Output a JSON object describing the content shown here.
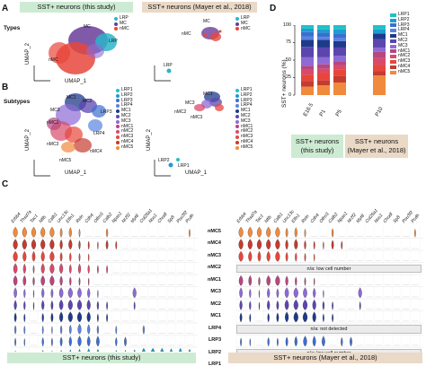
{
  "panels": {
    "A": "A",
    "B": "B",
    "C": "C",
    "D": "D"
  },
  "banners": {
    "this_study": "SST+ neurons (this study)",
    "mayer": "SST+ neurons (Mayer et al., 2018)"
  },
  "rows": {
    "types": "Types",
    "subtypes": "Subtypes"
  },
  "umap": {
    "x": "UMAP_1",
    "y": "UMAP_2"
  },
  "types_legend": [
    {
      "label": "LRP",
      "color": "#2bb5c9"
    },
    {
      "label": "MC",
      "color": "#6a3d9a"
    },
    {
      "label": "nMC",
      "color": "#e8463b"
    }
  ],
  "subtypes_legend": [
    {
      "label": "LRP1",
      "color": "#1fc1c9"
    },
    {
      "label": "LRP2",
      "color": "#1f9bd1"
    },
    {
      "label": "LRP3",
      "color": "#3a6fd0"
    },
    {
      "label": "LRP4",
      "color": "#5a83e0"
    },
    {
      "label": "MC1",
      "color": "#1f3a8a"
    },
    {
      "label": "MC2",
      "color": "#5b46b0"
    },
    {
      "label": "MC3",
      "color": "#8d6ad6"
    },
    {
      "label": "nMC1",
      "color": "#b8467f"
    },
    {
      "label": "nMC2",
      "color": "#d94a6a"
    },
    {
      "label": "nMC3",
      "color": "#e8463b"
    },
    {
      "label": "nMC4",
      "color": "#c43c2f"
    },
    {
      "label": "nMC5",
      "color": "#f08a3c"
    }
  ],
  "cluster_labels_A_left": [
    "MC",
    "LRP",
    "nMC"
  ],
  "cluster_labels_A_right": [
    "MC",
    "nMC",
    "LRP"
  ],
  "cluster_labels_B_left": [
    "MC1",
    "MC2",
    "MC3",
    "LRP1",
    "LRP2",
    "LRP3",
    "LRP4",
    "nMC1",
    "nMC2",
    "nMC3",
    "nMC4",
    "nMC5"
  ],
  "cluster_labels_B_right": [
    "MC1",
    "MC2",
    "MC3",
    "nMC1",
    "nMC2",
    "nMC3",
    "nMC4",
    "nMC5",
    "LRP1",
    "LRP2"
  ],
  "violin": {
    "genes_left": [
      "Erbb4",
      "Thsd7a",
      "Tac1",
      "Nfib",
      "Calb1",
      "Unc13c",
      "Elfn1",
      "Reln",
      "Cdh4",
      "Olfm3",
      "Calb2",
      "Npas1",
      "Nr2f2",
      "Myt8",
      "Col25a1",
      "Nos1",
      "Chodl",
      "Sp8",
      "Pou3f2",
      "Pcdh"
    ],
    "genes_right": [
      "Erbb4",
      "Thsd7a",
      "Tac1",
      "Nfib",
      "Calb1",
      "Unc13c",
      "Elfn1",
      "Reln",
      "Cdh4",
      "Olfm3",
      "Calb2",
      "Npas1",
      "Nr2f2",
      "Myt8",
      "Col25a1",
      "Nos1",
      "Chodl",
      "Sp8",
      "Pou3f2",
      "Pcdh"
    ],
    "clusters": [
      "nMC5",
      "nMC4",
      "nMC3",
      "nMC2",
      "nMC1",
      "MC3",
      "MC2",
      "MC1",
      "LRP4",
      "LRP3",
      "LRP2",
      "LRP1"
    ],
    "na_low": "n/a: low cell number",
    "na_not_detected": "n/a: not detected",
    "scale_ticks": [
      "0",
      "3",
      "0",
      "3"
    ]
  },
  "chart_data": {
    "type": "bar",
    "title": "",
    "ylabel": "SST+ neurons (%)",
    "ylim": [
      0,
      100
    ],
    "yticks": [
      "0",
      "25",
      "50",
      "75",
      "100"
    ],
    "categories": [
      "E16.5",
      "P1",
      "P5",
      "P10"
    ],
    "groups": [
      "SST+ neurons (this study)",
      "SST+ neurons (Mayer et al., 2018)"
    ],
    "series": [
      {
        "name": "nMC5",
        "values": [
          12,
          14,
          18,
          28
        ]
      },
      {
        "name": "nMC4",
        "values": [
          8,
          7,
          9,
          6
        ]
      },
      {
        "name": "nMC3",
        "values": [
          9,
          11,
          10,
          9
        ]
      },
      {
        "name": "nMC2",
        "values": [
          7,
          6,
          6,
          10
        ]
      },
      {
        "name": "nMC1",
        "values": [
          6,
          6,
          5,
          9
        ]
      },
      {
        "name": "MC3",
        "values": [
          12,
          10,
          8,
          6
        ]
      },
      {
        "name": "MC2",
        "values": [
          15,
          14,
          12,
          12
        ]
      },
      {
        "name": "MC1",
        "values": [
          10,
          11,
          9,
          8
        ]
      },
      {
        "name": "LRP4",
        "values": [
          5,
          4,
          5,
          0
        ]
      },
      {
        "name": "LRP3",
        "values": [
          6,
          6,
          6,
          0
        ]
      },
      {
        "name": "LRP2",
        "values": [
          5,
          5,
          6,
          6
        ]
      },
      {
        "name": "LRP1",
        "values": [
          5,
          6,
          6,
          6
        ]
      }
    ],
    "colors": [
      "#f08a3c",
      "#c43c2f",
      "#e8463b",
      "#d94a6a",
      "#b8467f",
      "#8d6ad6",
      "#5b46b0",
      "#1f3a8a",
      "#5a83e0",
      "#3a6fd0",
      "#1f9bd1",
      "#1fc1c9"
    ]
  }
}
